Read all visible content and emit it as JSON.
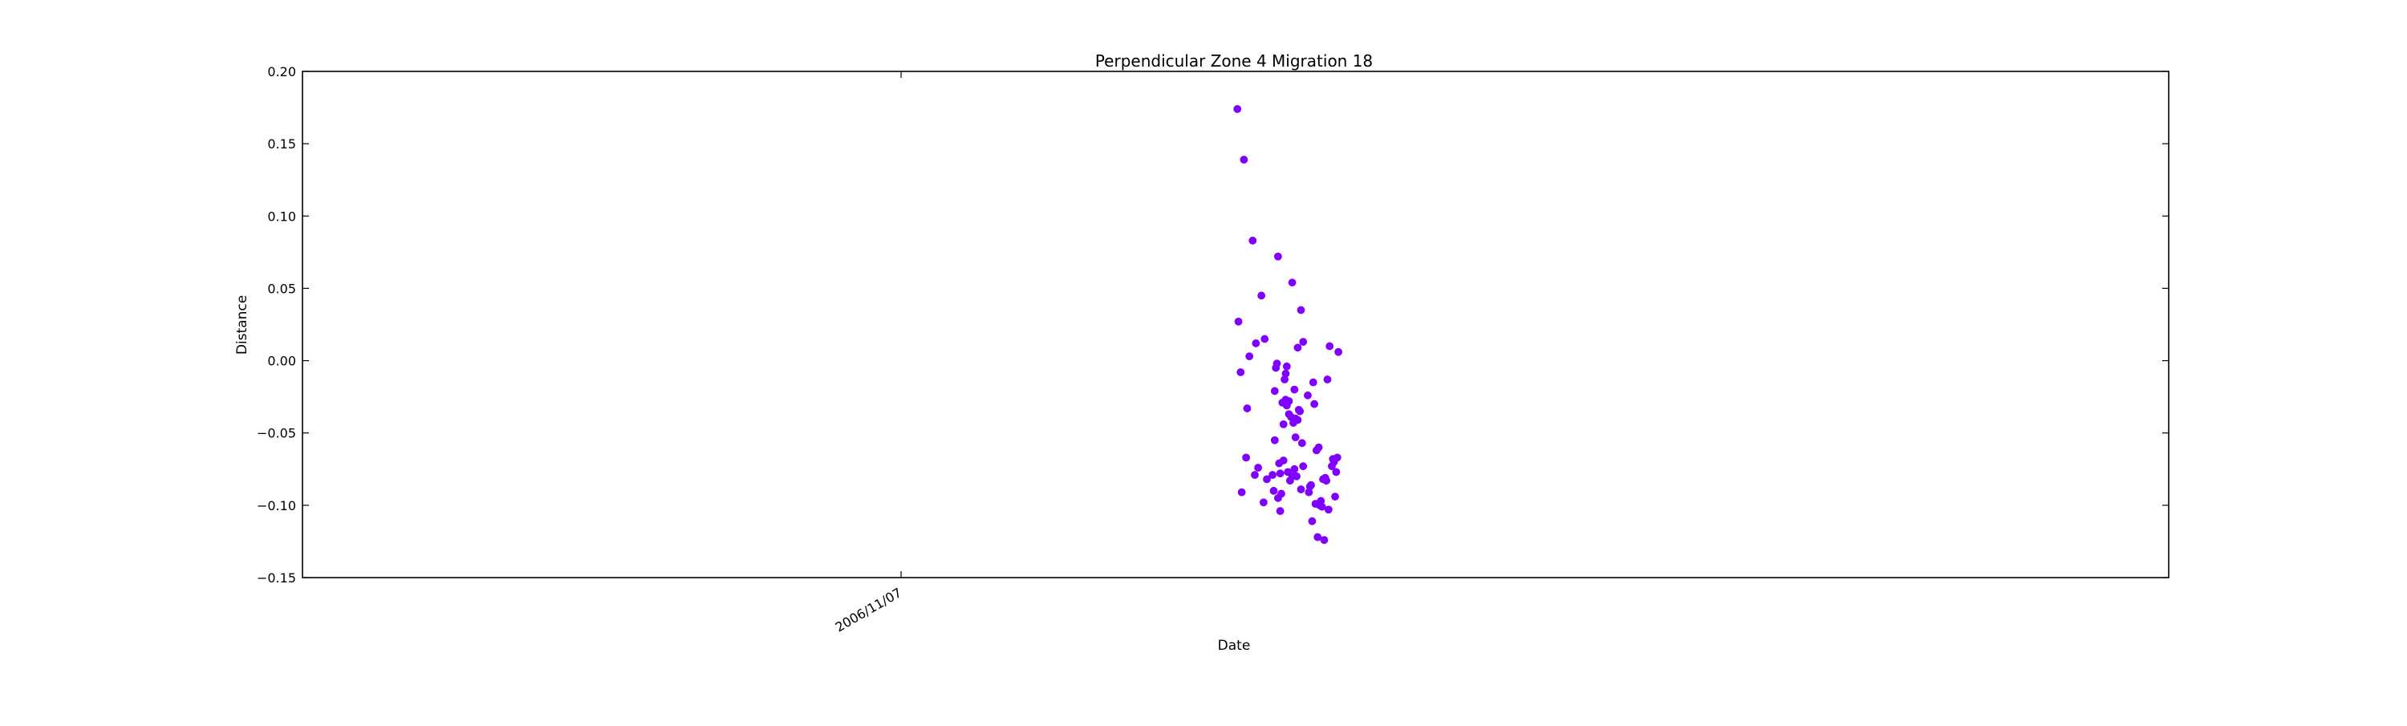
{
  "chart_data": {
    "type": "scatter",
    "title": "Perpendicular Zone 4 Migration 18",
    "xlabel": "Date",
    "ylabel": "Distance",
    "xlim": [
      "2006/10/21",
      "2006/12/13"
    ],
    "ylim": [
      -0.15,
      0.2
    ],
    "x_ticks": [
      "2006/11/07"
    ],
    "y_ticks": [
      "0.20",
      "0.15",
      "0.10",
      "0.05",
      "0.00",
      "−0.05",
      "−0.10",
      "−0.15"
    ],
    "y_tick_values": [
      0.2,
      0.15,
      0.1,
      0.05,
      0.0,
      -0.05,
      -0.1,
      -0.15
    ],
    "grid": false,
    "marker_color": "#7f00ff",
    "series": [
      {
        "x": [
          "2006/11/17",
          "2006/11/17",
          "2006/11/17",
          "2006/11/17",
          "2006/11/17",
          "2006/11/17",
          "2006/11/17",
          "2006/11/17",
          "2006/11/17",
          "2006/11/17",
          "2006/11/17",
          "2006/11/17",
          "2006/11/17",
          "2006/11/17",
          "2006/11/17",
          "2006/11/17",
          "2006/11/18",
          "2006/11/18",
          "2006/11/18",
          "2006/11/18",
          "2006/11/18",
          "2006/11/18",
          "2006/11/18",
          "2006/11/18",
          "2006/11/18",
          "2006/11/18",
          "2006/11/18",
          "2006/11/18",
          "2006/11/18",
          "2006/11/18",
          "2006/11/18",
          "2006/11/18",
          "2006/11/18",
          "2006/11/18",
          "2006/11/18",
          "2006/11/18",
          "2006/11/18",
          "2006/11/18",
          "2006/11/18",
          "2006/11/18",
          "2006/11/18",
          "2006/11/18",
          "2006/11/18",
          "2006/11/18",
          "2006/11/18",
          "2006/11/18",
          "2006/11/18",
          "2006/11/18",
          "2006/11/18",
          "2006/11/18",
          "2006/11/18",
          "2006/11/18",
          "2006/11/18",
          "2006/11/18",
          "2006/11/18",
          "2006/11/18",
          "2006/11/18",
          "2006/11/18",
          "2006/11/19",
          "2006/11/19",
          "2006/11/19",
          "2006/11/19",
          "2006/11/19",
          "2006/11/19",
          "2006/11/19",
          "2006/11/19",
          "2006/11/19",
          "2006/11/19",
          "2006/11/19",
          "2006/11/19",
          "2006/11/19",
          "2006/11/19",
          "2006/11/19",
          "2006/11/19",
          "2006/11/19",
          "2006/11/19",
          "2006/11/19",
          "2006/11/19",
          "2006/11/19",
          "2006/11/19",
          "2006/11/19",
          "2006/11/19",
          "2006/11/19",
          "2006/11/19",
          "2006/11/19",
          "2006/11/19"
        ],
        "y": [
          0.174,
          -0.067,
          -0.079,
          -0.098,
          -0.008,
          0.003,
          -0.074,
          -0.082,
          0.139,
          0.083,
          0.045,
          0.027,
          -0.033,
          0.012,
          0.015,
          -0.091,
          -0.027,
          -0.075,
          0.013,
          -0.078,
          -0.028,
          0.009,
          -0.055,
          -0.044,
          0.054,
          0.035,
          0.072,
          -0.031,
          -0.053,
          -0.079,
          -0.092,
          -0.083,
          -0.034,
          -0.005,
          -0.013,
          -0.043,
          -0.057,
          -0.071,
          -0.077,
          -0.08,
          -0.09,
          -0.029,
          -0.039,
          -0.035,
          -0.002,
          -0.009,
          -0.02,
          -0.073,
          -0.104,
          -0.037,
          -0.041,
          -0.021,
          -0.069,
          -0.08,
          -0.089,
          -0.095,
          -0.004,
          -0.04,
          -0.024,
          -0.062,
          -0.081,
          -0.07,
          -0.086,
          -0.1,
          -0.103,
          -0.067,
          -0.03,
          -0.082,
          -0.073,
          -0.091,
          -0.122,
          -0.083,
          -0.094,
          -0.111,
          -0.097,
          0.01,
          0.006,
          -0.099,
          -0.124,
          -0.068,
          -0.087,
          -0.06,
          -0.013,
          -0.077,
          -0.015,
          -0.101
        ]
      }
    ]
  }
}
